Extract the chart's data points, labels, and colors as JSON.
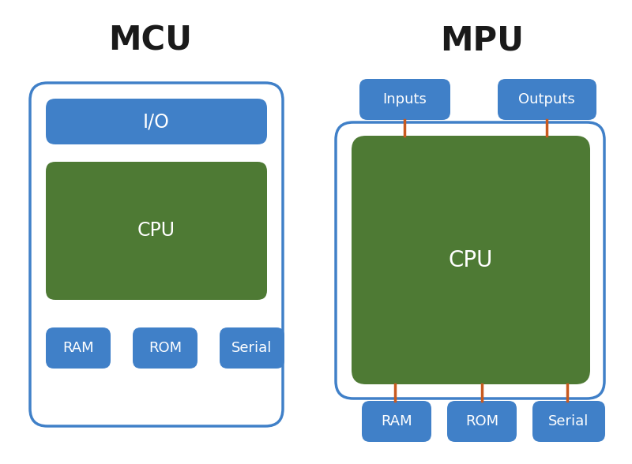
{
  "bg_color": "#ffffff",
  "blue_color": "#4080c8",
  "green_color": "#4e7a34",
  "orange_color": "#c85a20",
  "white": "#ffffff",
  "dark": "#1a1a1a",
  "border_color": "#4080c8",
  "outer_face_color": "#ffffff",
  "title_mcu": "MCU",
  "title_mpu": "MPU",
  "label_io": "I/O",
  "label_cpu": "CPU",
  "label_ram": "RAM",
  "label_rom": "ROM",
  "label_serial": "Serial",
  "label_inputs": "Inputs",
  "label_outputs": "Outputs",
  "figw": 8.0,
  "figh": 5.88,
  "dpi": 100
}
